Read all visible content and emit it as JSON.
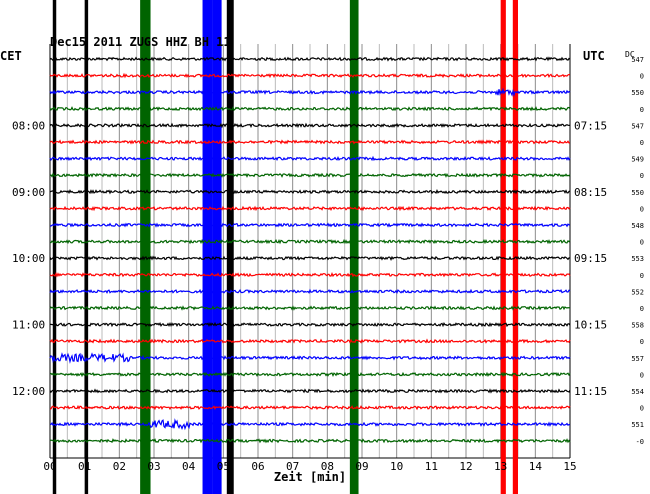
{
  "chart_data": {
    "type": "line",
    "title": "Dec15 2011  ZUGS HHZ BH 11",
    "xlabel": "Zeit [min]",
    "left_axis_label": "CET",
    "right_axis_label": "UTC",
    "right_column_label": "DC",
    "xlim": [
      0,
      15
    ],
    "x_ticks": [
      "00",
      "01",
      "02",
      "03",
      "04",
      "05",
      "06",
      "07",
      "08",
      "09",
      "10",
      "11",
      "12",
      "13",
      "14",
      "15"
    ],
    "grid": true,
    "trace_colors": [
      "#000000",
      "#ff0000",
      "#0000ff",
      "#006400"
    ],
    "left_time_labels": [
      {
        "row": 4,
        "label": "08:00"
      },
      {
        "row": 8,
        "label": "09:00"
      },
      {
        "row": 12,
        "label": "10:00"
      },
      {
        "row": 16,
        "label": "11:00"
      },
      {
        "row": 20,
        "label": "12:00"
      }
    ],
    "right_time_labels": [
      {
        "row": 4,
        "label": "07:15"
      },
      {
        "row": 8,
        "label": "08:15"
      },
      {
        "row": 12,
        "label": "09:15"
      },
      {
        "row": 16,
        "label": "10:15"
      },
      {
        "row": 20,
        "label": "11:15"
      }
    ],
    "dc_values": [
      "547",
      "0",
      "550",
      "0",
      "547",
      "0",
      "549",
      "0",
      "550",
      "0",
      "548",
      "0",
      "553",
      "0",
      "552",
      "0",
      "558",
      "0",
      "557",
      "0",
      "554",
      "0",
      "551",
      "-0"
    ],
    "saturation_bands": [
      {
        "x_start": 0.08,
        "x_end": 0.18,
        "color": "#000000"
      },
      {
        "x_start": 1.0,
        "x_end": 1.1,
        "color": "#000000"
      },
      {
        "x_start": 2.6,
        "x_end": 2.9,
        "color": "#006400"
      },
      {
        "x_start": 4.4,
        "x_end": 4.7,
        "color": "#0000ff"
      },
      {
        "x_start": 4.7,
        "x_end": 4.95,
        "color": "#0000ff"
      },
      {
        "x_start": 5.1,
        "x_end": 5.3,
        "color": "#000000"
      },
      {
        "x_start": 8.65,
        "x_end": 8.9,
        "color": "#006400"
      },
      {
        "x_start": 13.0,
        "x_end": 13.15,
        "color": "#ff0000"
      },
      {
        "x_start": 13.35,
        "x_end": 13.5,
        "color": "#ff0000"
      }
    ]
  }
}
